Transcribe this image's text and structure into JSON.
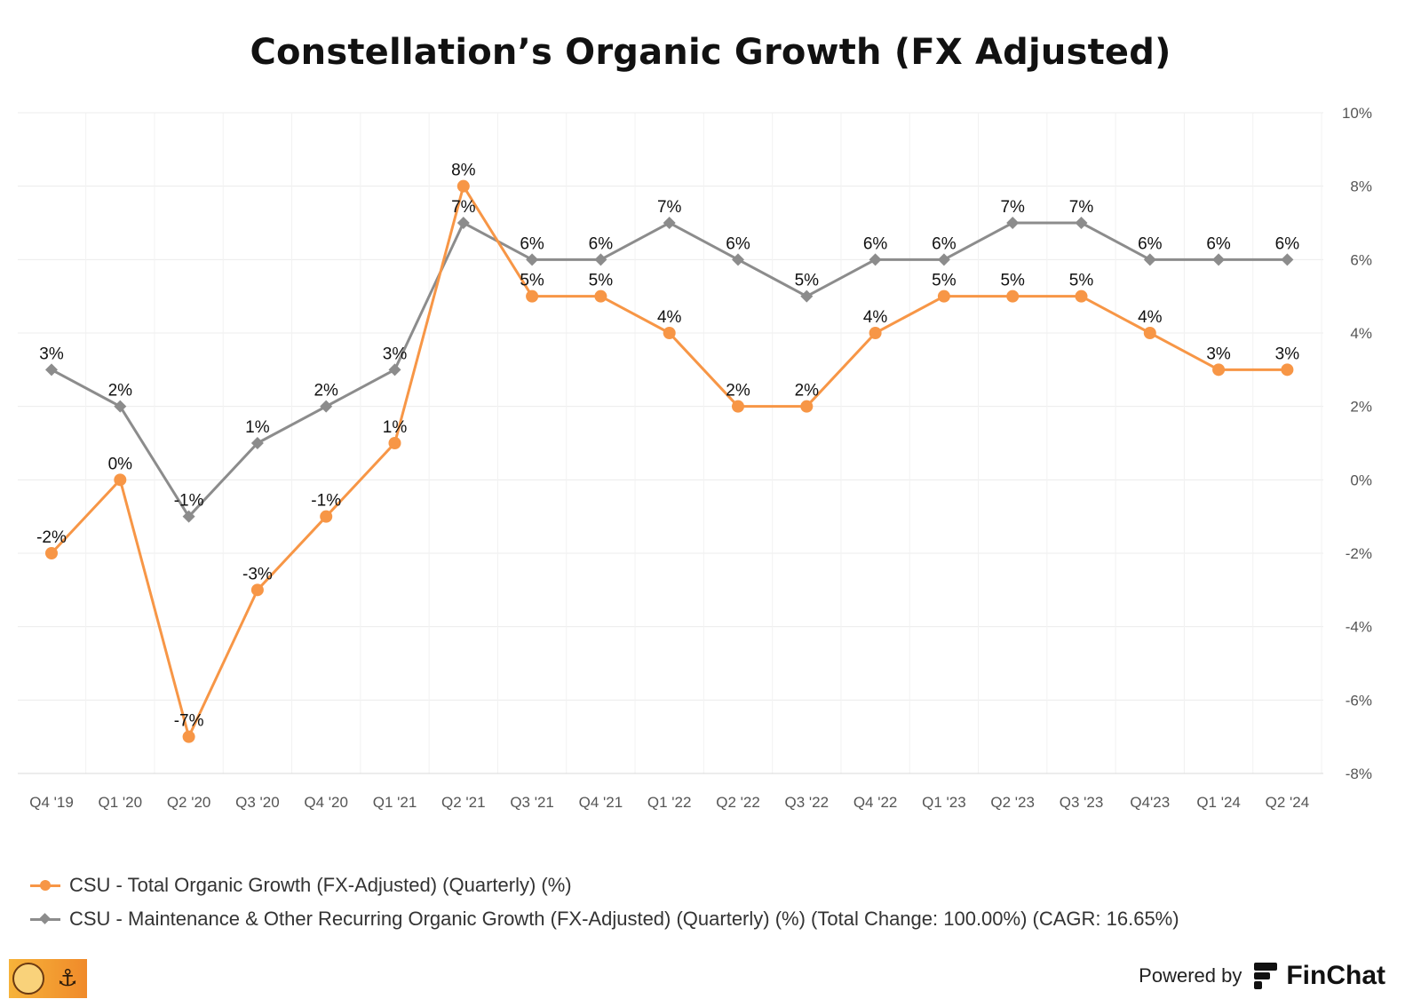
{
  "chart_data": {
    "type": "line",
    "title": "Constellation’s Organic Growth (FX Adjusted)",
    "categories": [
      "Q4 '19",
      "Q1 '20",
      "Q2 '20",
      "Q3 '20",
      "Q4 '20",
      "Q1 '21",
      "Q2 '21",
      "Q3 '21",
      "Q4 '21",
      "Q1 '22",
      "Q2 '22",
      "Q3 '22",
      "Q4 '22",
      "Q1 '23",
      "Q2 '23",
      "Q3 '23",
      "Q4'23",
      "Q1 '24",
      "Q2 '24"
    ],
    "ylim": [
      -8,
      10
    ],
    "y_ticks": [
      10,
      8,
      6,
      4,
      2,
      0,
      -2,
      -4,
      -6,
      -8
    ],
    "y_axis_side": "right",
    "y_tick_suffix": "%",
    "grid": true,
    "legend_position": "bottom-left",
    "series": [
      {
        "name": "CSU - Total Organic Growth (FX-Adjusted) (Quarterly) (%)",
        "marker": "circle",
        "color": "#f79646",
        "values": [
          -2,
          0,
          -7,
          -3,
          -1,
          1,
          8,
          5,
          5,
          4,
          2,
          2,
          4,
          5,
          5,
          5,
          4,
          3,
          3
        ],
        "labels": [
          "-2%",
          "0%",
          "-7%",
          "-3%",
          "-1%",
          "1%",
          "8%",
          "5%",
          "5%",
          "4%",
          "2%",
          "2%",
          "4%",
          "5%",
          "5%",
          "5%",
          "4%",
          "3%",
          "3%"
        ]
      },
      {
        "name": "CSU - Maintenance & Other Recurring Organic Growth (FX-Adjusted) (Quarterly) (%) (Total Change: 100.00%) (CAGR: 16.65%)",
        "marker": "diamond",
        "color": "#8c8c8c",
        "values": [
          3,
          2,
          -1,
          1,
          2,
          3,
          7,
          6,
          6,
          7,
          6,
          5,
          6,
          6,
          7,
          7,
          6,
          6,
          6
        ],
        "labels": [
          "3%",
          "2%",
          "-1%",
          "1%",
          "2%",
          "3%",
          "7%",
          "6%",
          "6%",
          "7%",
          "6%",
          "5%",
          "6%",
          "6%",
          "7%",
          "7%",
          "6%",
          "6%",
          "6%"
        ]
      }
    ]
  },
  "footer": {
    "powered_by": "Powered by",
    "brand": "FinChat",
    "logo_icon": "finchat-logo-icon",
    "badge_icon": "best-anchor-stocks-badge-icon"
  },
  "colors": {
    "grid": "#ececec",
    "axis_text": "#555555",
    "label_text": "#111111"
  }
}
